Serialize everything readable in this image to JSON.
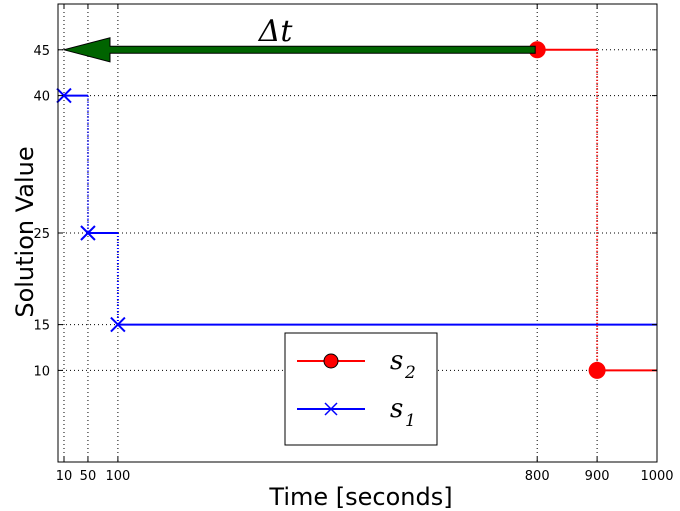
{
  "chart_data": {
    "type": "line",
    "title": "",
    "xlabel": "Time  [seconds]",
    "ylabel": "Solution Value",
    "xlim": [
      0,
      1000
    ],
    "ylim": [
      0,
      50
    ],
    "x_ticks": [
      10,
      50,
      100,
      800,
      900,
      1000
    ],
    "y_ticks": [
      10,
      15,
      25,
      40,
      45
    ],
    "grid": "dotted",
    "legend_position": "bottom-center",
    "series": [
      {
        "name": "s_2",
        "legend_label": "s",
        "legend_sub": "2",
        "color": "#ff0000",
        "marker": "circle",
        "step_style": "post",
        "points": [
          {
            "x": 800,
            "y": 45
          },
          {
            "x": 900,
            "y": 10
          }
        ],
        "end_x": 1000
      },
      {
        "name": "s_1",
        "legend_label": "s",
        "legend_sub": "1",
        "color": "#0000ff",
        "marker": "x",
        "step_style": "post",
        "points": [
          {
            "x": 10,
            "y": 40
          },
          {
            "x": 50,
            "y": 25
          },
          {
            "x": 100,
            "y": 15
          }
        ],
        "end_x": 1000
      }
    ],
    "annotation": {
      "label": "Δt",
      "from": {
        "x": 800,
        "y": 45
      },
      "to": {
        "x": 10,
        "y": 45
      },
      "color": "#006400"
    }
  }
}
